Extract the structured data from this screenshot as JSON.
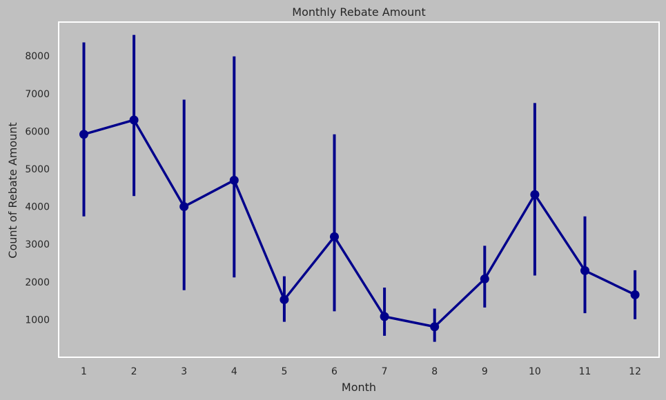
{
  "chart_data": {
    "type": "line",
    "title": "Monthly Rebate Amount",
    "xlabel": "Month",
    "ylabel": "Count of Rebate Amount",
    "categories": [
      "1",
      "2",
      "3",
      "4",
      "5",
      "6",
      "7",
      "8",
      "9",
      "10",
      "11",
      "12"
    ],
    "series": [
      {
        "values": [
          5920,
          6300,
          4000,
          4700,
          1530,
          3200,
          1080,
          810,
          2080,
          4320,
          2300,
          1660
        ],
        "ci_low": [
          3740,
          4280,
          1780,
          2120,
          940,
          1220,
          570,
          410,
          1320,
          2170,
          1170,
          1010
        ],
        "ci_high": [
          8360,
          8560,
          6840,
          7990,
          2150,
          5920,
          1850,
          1290,
          2960,
          6750,
          3740,
          2310
        ]
      }
    ],
    "yticks": [
      1000,
      2000,
      3000,
      4000,
      5000,
      6000,
      7000,
      8000
    ],
    "ylim": [
      0,
      8900
    ],
    "grid": false,
    "colors": {
      "line": "#00008b",
      "background": "#c0c0c0",
      "frame": "#ffffff",
      "text": "#262626"
    }
  }
}
